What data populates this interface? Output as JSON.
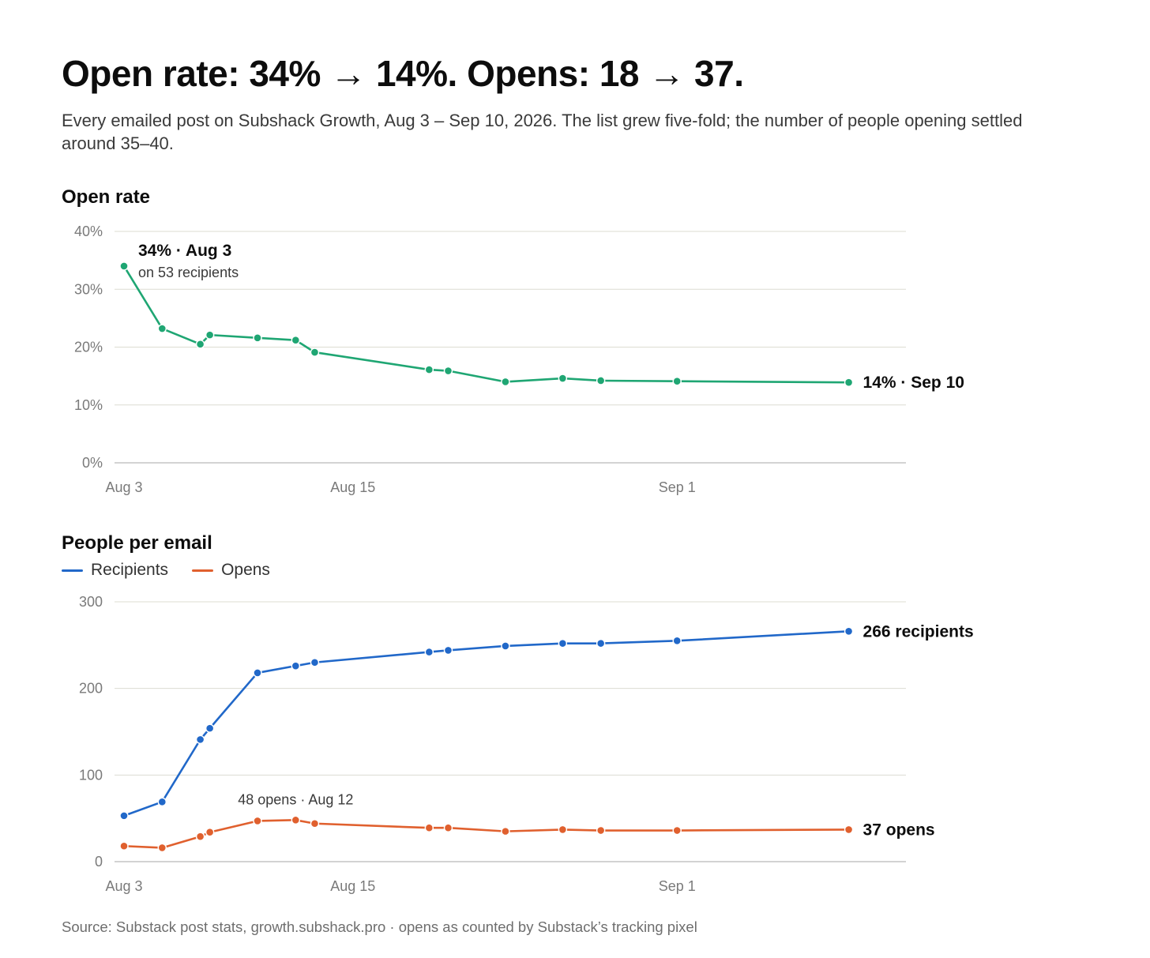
{
  "headline": "Open rate: 34% → 14%. Opens: 18 → 37.",
  "subtitle": "Every emailed post on Subshack Growth, Aug 3 – Sep 10, 2026. The list grew five-fold; the number of people opening settled around 35–40.",
  "source": "Source: Substack post stats, growth.subshack.pro · opens as counted by Substack’s tracking pixel",
  "colors": {
    "open_rate": "#1fa673",
    "recipients": "#2168c9",
    "opens": "#e0602e"
  },
  "chart_data": [
    {
      "type": "line",
      "title": "Open rate",
      "x": [
        "2026-08-03",
        "2026-08-05",
        "2026-08-07",
        "2026-08-07T12:00",
        "2026-08-10",
        "2026-08-12",
        "2026-08-13",
        "2026-08-19",
        "2026-08-20",
        "2026-08-23",
        "2026-08-26",
        "2026-08-28",
        "2026-09-01",
        "2026-09-10"
      ],
      "x_ticks": [
        {
          "date": "2026-08-03",
          "label": "Aug 3"
        },
        {
          "date": "2026-08-15",
          "label": "Aug 15"
        },
        {
          "date": "2026-09-01",
          "label": "Sep 1"
        }
      ],
      "y_ticks": [
        {
          "value": 0,
          "label": "0%"
        },
        {
          "value": 10,
          "label": "10%"
        },
        {
          "value": 20,
          "label": "20%"
        },
        {
          "value": 30,
          "label": "30%"
        },
        {
          "value": 40,
          "label": "40%"
        }
      ],
      "ylim": [
        0,
        40
      ],
      "xlim": [
        "2026-08-03",
        "2026-09-13"
      ],
      "series": [
        {
          "values": [
            34,
            23.2,
            20.5,
            22.1,
            21.6,
            21.2,
            19.1,
            16.1,
            15.9,
            14.0,
            14.6,
            14.2,
            14.1,
            13.9
          ]
        }
      ],
      "annotations": [
        {
          "label": "34% · Aug 3",
          "sublabel": "on 53 recipients"
        },
        {
          "label": "14% · Sep 10"
        }
      ],
      "grid": true
    },
    {
      "type": "line",
      "title": "People per email",
      "x": [
        "2026-08-03",
        "2026-08-05",
        "2026-08-07",
        "2026-08-07T12:00",
        "2026-08-10",
        "2026-08-12",
        "2026-08-13",
        "2026-08-19",
        "2026-08-20",
        "2026-08-23",
        "2026-08-26",
        "2026-08-28",
        "2026-09-01",
        "2026-09-10"
      ],
      "x_ticks": [
        {
          "date": "2026-08-03",
          "label": "Aug 3"
        },
        {
          "date": "2026-08-15",
          "label": "Aug 15"
        },
        {
          "date": "2026-09-01",
          "label": "Sep 1"
        }
      ],
      "y_ticks": [
        {
          "value": 0,
          "label": "0"
        },
        {
          "value": 100,
          "label": "100"
        },
        {
          "value": 200,
          "label": "200"
        },
        {
          "value": 300,
          "label": "300"
        }
      ],
      "ylim": [
        0,
        300
      ],
      "xlim": [
        "2026-08-03",
        "2026-09-13"
      ],
      "legend": "top-left",
      "series": [
        {
          "name": "Recipients",
          "values": [
            53,
            69,
            141,
            154,
            218,
            226,
            230,
            242,
            244,
            249,
            252,
            252,
            255,
            266
          ]
        },
        {
          "name": "Opens",
          "values": [
            18,
            16,
            29,
            34,
            47,
            48,
            44,
            39,
            39,
            35,
            37,
            36,
            36,
            37
          ]
        }
      ],
      "annotations": [
        {
          "label": "48 opens · Aug 12"
        },
        {
          "label": "266 recipients"
        },
        {
          "label": "37 opens"
        }
      ],
      "grid": true
    }
  ]
}
